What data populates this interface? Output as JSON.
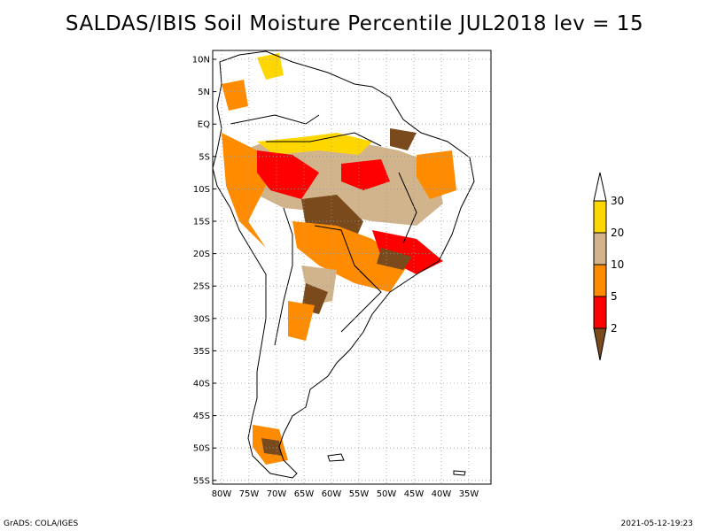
{
  "title": "SALDAS/IBIS Soil Moisture Percentile JUL2018 lev = 15",
  "lat_labels": [
    "10N",
    "5N",
    "EQ",
    "5S",
    "10S",
    "15S",
    "20S",
    "25S",
    "30S",
    "35S",
    "40S",
    "45S",
    "50S",
    "55S"
  ],
  "lon_labels": [
    "80W",
    "75W",
    "70W",
    "65W",
    "60W",
    "55W",
    "50W",
    "45W",
    "40W",
    "35W"
  ],
  "colorbar": {
    "labels": [
      "2",
      "5",
      "10",
      "20",
      "30"
    ],
    "colors": [
      "#7a4a1c",
      "#ff0000",
      "#ff8c00",
      "#d2b48c",
      "#ffd700",
      "#ffffff"
    ]
  },
  "footer": {
    "left": "GrADS: COLA/IGES",
    "right": "2021-05-12-19:23"
  },
  "colors": {
    "frame": "#000000",
    "grid": "#9a9a9a",
    "coast": "#000000"
  }
}
